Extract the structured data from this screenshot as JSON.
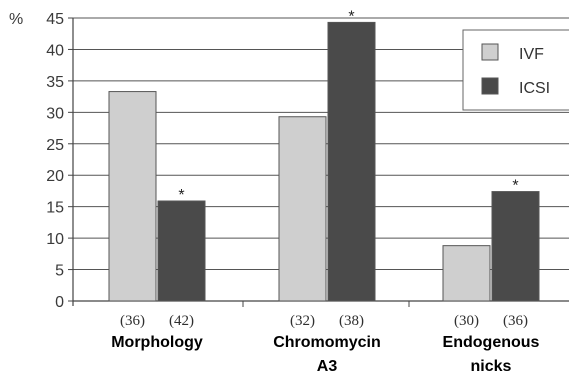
{
  "chart_data": {
    "type": "bar",
    "ylabel": "%",
    "ylim": [
      0,
      45
    ],
    "y_ticks": [
      "0",
      "5",
      "10",
      "15",
      "20",
      "25",
      "30",
      "35",
      "40",
      "45"
    ],
    "grid": true,
    "legend_position": "top-right",
    "categories": [
      {
        "label_lines": [
          "Morphology"
        ],
        "n_labels": [
          "(36)",
          "(42)"
        ],
        "significance": [
          "",
          "*"
        ]
      },
      {
        "label_lines": [
          "Chromomycin",
          "A3"
        ],
        "n_labels": [
          "(32)",
          "(38)"
        ],
        "significance": [
          "",
          "*"
        ]
      },
      {
        "label_lines": [
          "Endogenous",
          "nicks"
        ],
        "n_labels": [
          "(30)",
          "(36)"
        ],
        "significance": [
          "",
          "*"
        ]
      }
    ],
    "series": [
      {
        "name": "IVF",
        "color": "#cfcfcf",
        "values": [
          33.3,
          29.3,
          8.8
        ]
      },
      {
        "name": "ICSI",
        "color": "#4a4a4a",
        "values": [
          15.9,
          44.3,
          17.4
        ]
      }
    ]
  }
}
